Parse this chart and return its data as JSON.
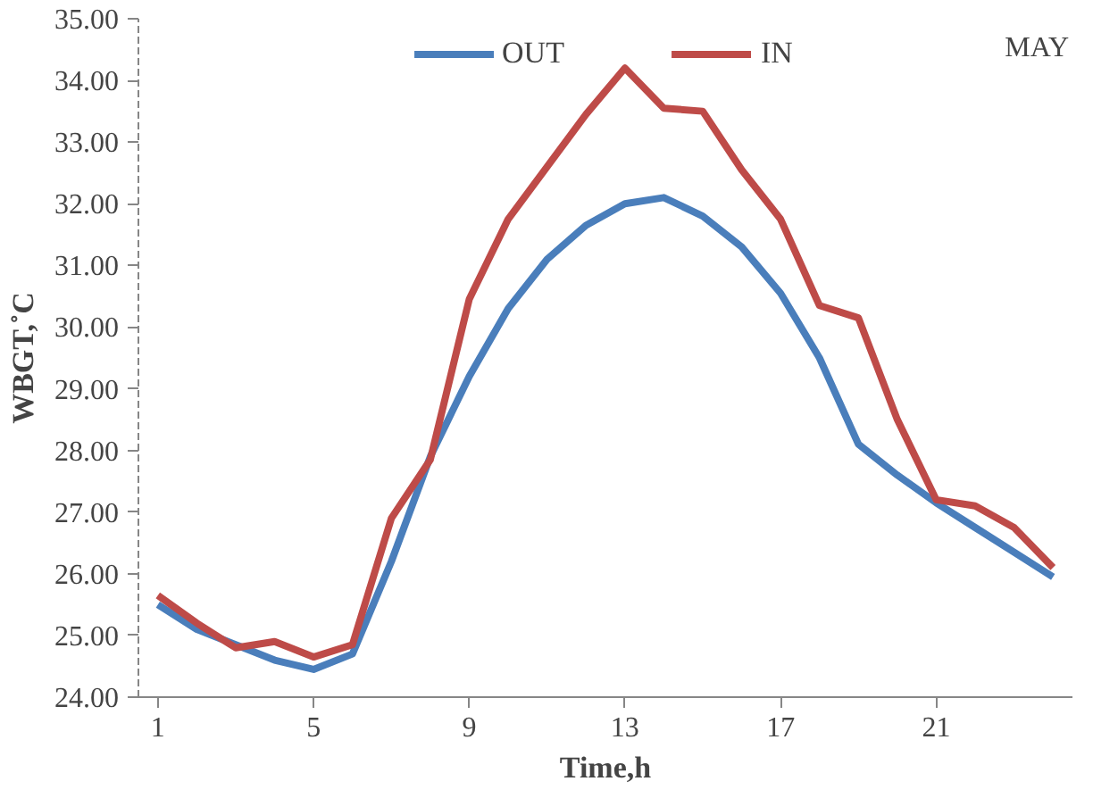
{
  "chart_data": {
    "type": "line",
    "xlabel": "Time,h",
    "ylabel": "WBGT,˚C",
    "annotations": [
      "MAY"
    ],
    "x": [
      1,
      2,
      3,
      4,
      5,
      6,
      7,
      8,
      9,
      10,
      11,
      12,
      13,
      14,
      15,
      16,
      17,
      18,
      19,
      20,
      21,
      22,
      23,
      24
    ],
    "series": [
      {
        "name": "OUT",
        "color": "#4a7ebb",
        "values": [
          25.5,
          25.1,
          24.85,
          24.6,
          24.45,
          24.7,
          26.2,
          27.9,
          29.2,
          30.3,
          31.1,
          31.65,
          32.0,
          32.1,
          31.8,
          31.3,
          30.55,
          29.5,
          28.1,
          27.6,
          27.15,
          26.75,
          26.35,
          25.95
        ]
      },
      {
        "name": "IN",
        "color": "#be4b48",
        "values": [
          25.65,
          25.2,
          24.8,
          24.9,
          24.65,
          24.85,
          26.9,
          27.85,
          30.45,
          31.75,
          32.6,
          33.45,
          34.2,
          33.55,
          33.5,
          32.55,
          31.75,
          30.35,
          30.15,
          28.5,
          27.2,
          27.1,
          26.75,
          26.1
        ]
      }
    ],
    "xlim": [
      0.5,
      24.5
    ],
    "xticks": [
      1,
      5,
      9,
      13,
      17,
      21
    ],
    "ylim": [
      24,
      35
    ],
    "yticks": [
      {
        "value": 24,
        "label": "24.00"
      },
      {
        "value": 25,
        "label": "25.00"
      },
      {
        "value": 26,
        "label": "26.00"
      },
      {
        "value": 27,
        "label": "27.00"
      },
      {
        "value": 28,
        "label": "28.00"
      },
      {
        "value": 29,
        "label": "29.00"
      },
      {
        "value": 30,
        "label": "30.00"
      },
      {
        "value": 31,
        "label": "31.00"
      },
      {
        "value": 32,
        "label": "32.00"
      },
      {
        "value": 33,
        "label": "33.00"
      },
      {
        "value": 34,
        "label": "34.00"
      },
      {
        "value": 35,
        "label": "35.00"
      }
    ],
    "grid": false,
    "legend": "top",
    "marker": "none",
    "line_style": "solid"
  }
}
